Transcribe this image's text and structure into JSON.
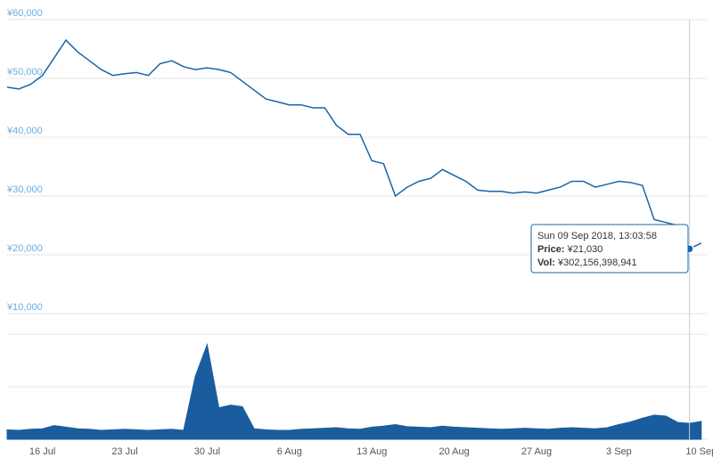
{
  "chart_data": [
    {
      "type": "line",
      "color": "#1a64a8",
      "x": [
        "13 Jul",
        "14 Jul",
        "15 Jul",
        "16 Jul",
        "17 Jul",
        "18 Jul",
        "19 Jul",
        "20 Jul",
        "21 Jul",
        "22 Jul",
        "23 Jul",
        "24 Jul",
        "25 Jul",
        "26 Jul",
        "27 Jul",
        "28 Jul",
        "29 Jul",
        "30 Jul",
        "31 Jul",
        "1 Aug",
        "2 Aug",
        "3 Aug",
        "4 Aug",
        "5 Aug",
        "6 Aug",
        "7 Aug",
        "8 Aug",
        "9 Aug",
        "10 Aug",
        "11 Aug",
        "12 Aug",
        "13 Aug",
        "14 Aug",
        "15 Aug",
        "16 Aug",
        "17 Aug",
        "18 Aug",
        "19 Aug",
        "20 Aug",
        "21 Aug",
        "22 Aug",
        "23 Aug",
        "24 Aug",
        "25 Aug",
        "26 Aug",
        "27 Aug",
        "28 Aug",
        "29 Aug",
        "30 Aug",
        "31 Aug",
        "1 Sep",
        "2 Sep",
        "3 Sep",
        "4 Sep",
        "5 Sep",
        "6 Sep",
        "7 Sep",
        "8 Sep",
        "9 Sep",
        "10 Sep"
      ],
      "values": [
        48500,
        48200,
        49000,
        50500,
        53500,
        56500,
        54500,
        53000,
        51500,
        50500,
        50800,
        51000,
        50500,
        52500,
        53000,
        52000,
        51500,
        51800,
        51500,
        51000,
        49500,
        48000,
        46500,
        46000,
        45500,
        45500,
        45000,
        45000,
        42000,
        40500,
        40500,
        36000,
        35500,
        30000,
        31500,
        32500,
        33000,
        34500,
        33500,
        32500,
        31000,
        30800,
        30800,
        30500,
        30700,
        30500,
        31000,
        31500,
        32500,
        32500,
        31500,
        32000,
        32500,
        32300,
        31800,
        26000,
        25500,
        25000,
        21030,
        22000
      ],
      "xticks": [
        "16 Jul",
        "23 Jul",
        "30 Jul",
        "6 Aug",
        "13 Aug",
        "20 Aug",
        "27 Aug",
        "3 Sep",
        "10 Sep"
      ],
      "ylim": [
        10000,
        60000
      ],
      "yticks": [
        {
          "value": 10000,
          "label": "¥10,000"
        },
        {
          "value": 20000,
          "label": "¥20,000"
        },
        {
          "value": 30000,
          "label": "¥30,000"
        },
        {
          "value": 40000,
          "label": "¥40,000"
        },
        {
          "value": 50000,
          "label": "¥50,000"
        },
        {
          "value": 60000,
          "label": "¥60,000"
        }
      ],
      "grid": true,
      "tooltip": {
        "date": "Sun 09 Sep 2018, 13:03:58",
        "price_label": "Price:",
        "price": "¥21,030",
        "vol_label": "Vol:",
        "vol": "¥302,156,398,941"
      }
    },
    {
      "type": "area",
      "color": "#1a5d9e",
      "values": [
        180000000000,
        170000000000,
        190000000000,
        200000000000,
        260000000000,
        230000000000,
        200000000000,
        190000000000,
        170000000000,
        180000000000,
        190000000000,
        180000000000,
        170000000000,
        180000000000,
        190000000000,
        170000000000,
        1200000000000,
        1800000000000,
        600000000000,
        650000000000,
        620000000000,
        200000000000,
        180000000000,
        170000000000,
        170000000000,
        190000000000,
        200000000000,
        210000000000,
        220000000000,
        200000000000,
        190000000000,
        230000000000,
        250000000000,
        280000000000,
        240000000000,
        230000000000,
        220000000000,
        250000000000,
        230000000000,
        220000000000,
        210000000000,
        200000000000,
        190000000000,
        200000000000,
        210000000000,
        200000000000,
        190000000000,
        210000000000,
        220000000000,
        210000000000,
        200000000000,
        220000000000,
        280000000000,
        330000000000,
        400000000000,
        460000000000,
        440000000000,
        320000000000,
        302156398941,
        340000000000
      ],
      "ylim": [
        0,
        2000000000000
      ],
      "yticks": [
        0,
        1000000000000,
        2000000000000
      ],
      "grid": true,
      "show_tick_labels": false
    }
  ]
}
